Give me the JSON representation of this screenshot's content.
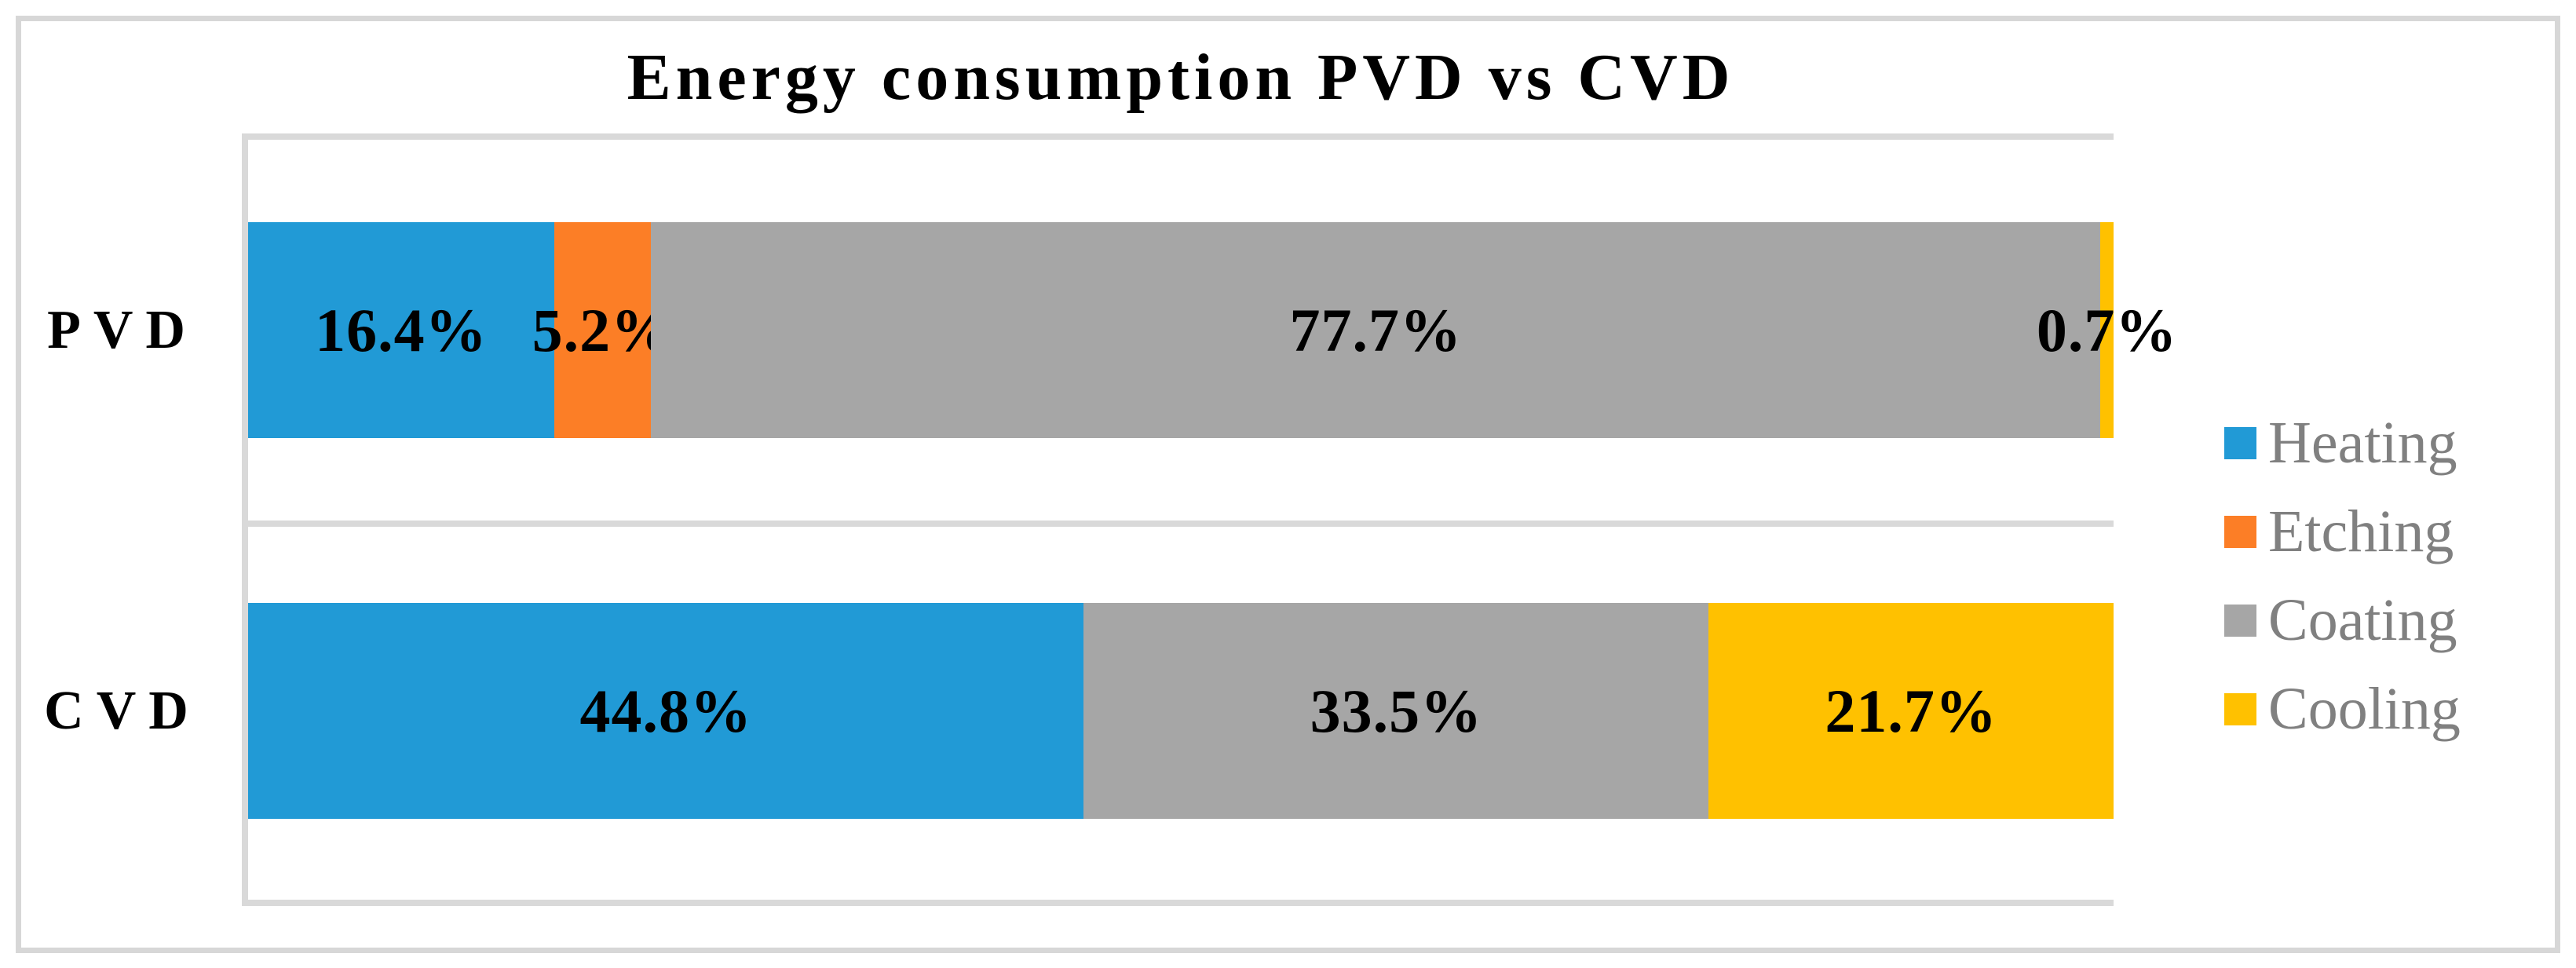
{
  "colors": {
    "Heating": "#219ad6",
    "Etching": "#fc7e26",
    "Coating": "#a6a6a6",
    "Cooling": "#ffc100",
    "gridline": "#d9d9d9",
    "figure_border": "#d7d7d7",
    "legend_text": "#808080",
    "label_text": "#000000"
  },
  "chart_data": {
    "type": "bar",
    "orientation": "horizontal",
    "stacked": true,
    "title": "Energy consumption PVD vs CVD",
    "categories": [
      "PVD",
      "CVD"
    ],
    "series": [
      {
        "name": "Heating",
        "values": [
          16.4,
          44.8
        ]
      },
      {
        "name": "Etching",
        "values": [
          5.2,
          0
        ]
      },
      {
        "name": "Coating",
        "values": [
          77.7,
          33.5
        ]
      },
      {
        "name": "Cooling",
        "values": [
          0.7,
          21.7
        ]
      }
    ],
    "data_labels": {
      "PVD": [
        "16.4%",
        "5.2%",
        "77.7%",
        "0.7%"
      ],
      "CVD": [
        "44.8%",
        "33.5%",
        "21.7%"
      ]
    },
    "xlim": [
      0,
      100
    ],
    "unit": "percent",
    "legend": [
      "Heating",
      "Etching",
      "Coating",
      "Cooling"
    ],
    "legend_position": "right",
    "gridlines": "category boundaries only, light gray",
    "axis_tick_labels": "none"
  }
}
